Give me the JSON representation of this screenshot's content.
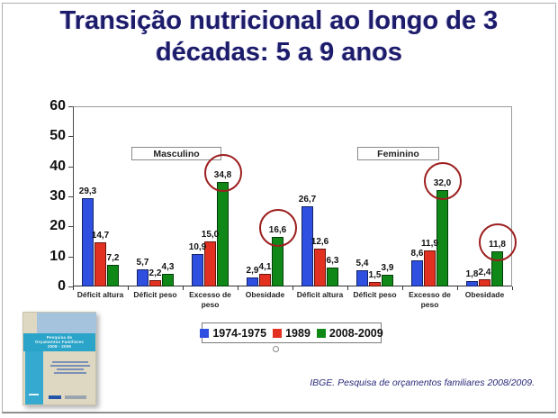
{
  "slide": {
    "title": "Transição nutricional ao longo de 3 décadas: 5 a 9 anos",
    "citation": "IBGE. Pesquisa de orçamentos familiares 2008/2009."
  },
  "chart_data": {
    "type": "bar",
    "title": "",
    "xlabel": "",
    "ylabel": "",
    "ylim": [
      0,
      60
    ],
    "yticks": [
      0,
      10,
      20,
      30,
      40,
      50,
      60
    ],
    "grid": false,
    "legend_position": "bottom",
    "group_labels": [
      "Masculino",
      "Feminino"
    ],
    "categories": [
      "Déficit altura",
      "Déficit peso",
      "Excesso de peso",
      "Obesidade",
      "Déficit altura",
      "Déficit peso",
      "Excesso de peso",
      "Obesidade"
    ],
    "series": [
      {
        "name": "1974-1975",
        "color": "#2f4fe0",
        "values": [
          29.3,
          5.7,
          10.9,
          2.9,
          26.7,
          5.4,
          8.6,
          1.8
        ],
        "labels": [
          "29,3",
          "5,7",
          "10,9",
          "2,9",
          "26,7",
          "5,4",
          "8,6",
          "1,8"
        ]
      },
      {
        "name": "1989",
        "color": "#e23120",
        "values": [
          14.7,
          2.2,
          15.0,
          4.1,
          12.6,
          1.5,
          11.9,
          2.4
        ],
        "labels": [
          "14,7",
          "2,2",
          "15,0",
          "4,1",
          "12,6",
          "1,5",
          "11,9",
          "2,4"
        ]
      },
      {
        "name": "2008-2009",
        "color": "#0f8818",
        "values": [
          7.2,
          4.3,
          34.8,
          16.6,
          6.3,
          3.9,
          32.0,
          11.8
        ],
        "labels": [
          "7,2",
          "4,3",
          "34,8",
          "16,6",
          "6,3",
          "3,9",
          "32,0",
          "11,8"
        ]
      }
    ],
    "circled_annotations": [
      {
        "series": 2,
        "category": 2,
        "value_label": "34,8"
      },
      {
        "series": 2,
        "category": 3,
        "value_label": "16,6"
      },
      {
        "series": 2,
        "category": 6,
        "value_label": "32,0"
      },
      {
        "series": 2,
        "category": 7,
        "value_label": "11,8"
      }
    ],
    "annotation_color": "#9c1e1e"
  },
  "cover": {
    "title_lines": [
      "Pesquisa de",
      "Orçamentos Familiares",
      "2008 - 2009"
    ]
  }
}
